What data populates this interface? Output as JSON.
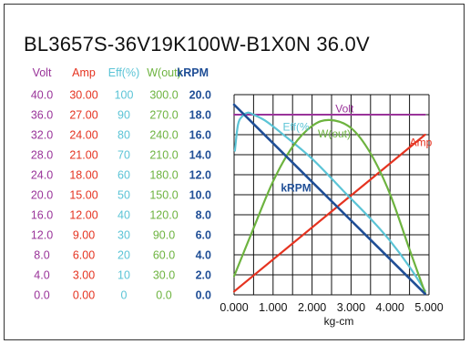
{
  "title": "BL3657S-36V19K100W-B1X0N   36.0V",
  "colors": {
    "volt": "#993399",
    "amp": "#e53320",
    "eff": "#5bc4d6",
    "wout": "#6db33f",
    "krpm": "#1f4e96",
    "grid": "#111111",
    "text": "#111111"
  },
  "chart_data": {
    "type": "line",
    "xlabel": "kg-cm",
    "x_ticks": [
      "0.000",
      "1.000",
      "2.000",
      "3.000",
      "4.000",
      "5.000"
    ],
    "xlim": [
      0,
      5
    ],
    "axes": [
      {
        "key": "volt",
        "header": "Volt",
        "ticks": [
          "0.0",
          "4.0",
          "8.0",
          "12.0",
          "16.0",
          "20.0",
          "24.0",
          "28.0",
          "32.0",
          "36.0",
          "40.0"
        ],
        "min": 0,
        "max": 40
      },
      {
        "key": "amp",
        "header": "Amp",
        "ticks": [
          "0.00",
          "3.00",
          "6.00",
          "9.00",
          "12.00",
          "15.00",
          "18.00",
          "21.00",
          "24.00",
          "27.00",
          "30.00"
        ],
        "min": 0,
        "max": 30
      },
      {
        "key": "eff",
        "header": "Eff(%)",
        "ticks": [
          "0",
          "10",
          "20",
          "30",
          "40",
          "50",
          "60",
          "70",
          "80",
          "90",
          "100"
        ],
        "min": 0,
        "max": 100
      },
      {
        "key": "wout",
        "header": "W(out)",
        "ticks": [
          "0.0",
          "30.0",
          "60.0",
          "90.0",
          "120.0",
          "150.0",
          "180.0",
          "210.0",
          "240.0",
          "270.0",
          "300.0"
        ],
        "min": 0,
        "max": 300
      },
      {
        "key": "krpm",
        "header": "kRPM",
        "ticks": [
          "0.0",
          "2.0",
          "4.0",
          "6.0",
          "8.0",
          "10.0",
          "12.0",
          "14.0",
          "16.0",
          "18.0",
          "20.0"
        ],
        "min": 0,
        "max": 20
      }
    ],
    "series": [
      {
        "name": "Volt",
        "axis": "volt",
        "x": [
          0,
          4.9
        ],
        "y": [
          36,
          36
        ]
      },
      {
        "name": "Amp",
        "axis": "amp",
        "x": [
          0,
          4.9
        ],
        "y": [
          0.5,
          24
        ]
      },
      {
        "name": "Eff(%)",
        "axis": "eff",
        "x": [
          0.02,
          0.1,
          0.2,
          0.35,
          0.5,
          0.8,
          1.2,
          2.0,
          2.8,
          3.5,
          4.0,
          4.5,
          4.9
        ],
        "y": [
          72,
          85,
          89,
          91,
          90,
          87,
          81,
          68,
          52,
          38,
          27,
          14,
          2
        ]
      },
      {
        "name": "W(out)",
        "axis": "wout",
        "x": [
          0,
          0.5,
          1.0,
          1.5,
          2.0,
          2.45,
          3.0,
          3.5,
          4.0,
          4.5,
          4.9
        ],
        "y": [
          28,
          100,
          170,
          222,
          253,
          262,
          250,
          212,
          151,
          68,
          3
        ]
      },
      {
        "name": "kRPM",
        "axis": "krpm",
        "x": [
          0,
          4.9
        ],
        "y": [
          19,
          0.1
        ]
      }
    ],
    "series_labels": [
      {
        "text": "Volt",
        "axis": "volt",
        "x": 2.6,
        "y": 36.5
      },
      {
        "text": "Amp",
        "axis": "amp",
        "x": 4.5,
        "y": 22.3
      },
      {
        "text": "Eff(%",
        "axis": "eff",
        "x": 1.25,
        "y": 82
      },
      {
        "text": "W(out)",
        "axis": "wout",
        "x": 2.15,
        "y": 236
      },
      {
        "text": "kRPM",
        "axis": "krpm",
        "x": 1.2,
        "y": 10.3
      }
    ],
    "grid": true
  }
}
